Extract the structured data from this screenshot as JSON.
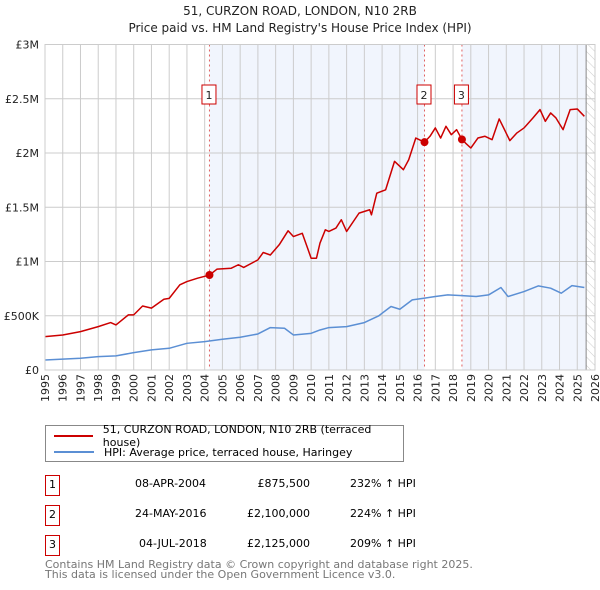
{
  "chart_data": {
    "type": "line",
    "title": "51, CURZON ROAD, LONDON, N10 2RB",
    "subtitle": "Price paid vs. HM Land Registry's House Price Index (HPI)",
    "xlim": [
      1995,
      2026
    ],
    "ylim": [
      0,
      3000000
    ],
    "x_ticks": [
      "1995",
      "1996",
      "1997",
      "1998",
      "1999",
      "2000",
      "2001",
      "2002",
      "2003",
      "2004",
      "2005",
      "2006",
      "2007",
      "2008",
      "2009",
      "2010",
      "2011",
      "2012",
      "2013",
      "2014",
      "2015",
      "2016",
      "2017",
      "2018",
      "2019",
      "2020",
      "2021",
      "2022",
      "2023",
      "2024",
      "2025",
      "2026"
    ],
    "y_ticks": [
      {
        "v": 0,
        "label": "£0"
      },
      {
        "v": 500000,
        "label": "£500K"
      },
      {
        "v": 1000000,
        "label": "£1M"
      },
      {
        "v": 1500000,
        "label": "£1.5M"
      },
      {
        "v": 2000000,
        "label": "£2M"
      },
      {
        "v": 2500000,
        "label": "£2.5M"
      },
      {
        "v": 3000000,
        "label": "£3M"
      }
    ],
    "grid": true,
    "series": [
      {
        "name": "51, CURZON ROAD, LONDON, N10 2RB (terraced house)",
        "color": "#cc0000",
        "points": [
          [
            1995,
            308
          ],
          [
            1996,
            323
          ],
          [
            1997,
            354
          ],
          [
            1998,
            400
          ],
          [
            1998.7,
            437
          ],
          [
            1999,
            415
          ],
          [
            1999.7,
            508
          ],
          [
            2000,
            508
          ],
          [
            2000.5,
            590
          ],
          [
            2001,
            570
          ],
          [
            2001.7,
            652
          ],
          [
            2002,
            660
          ],
          [
            2002.6,
            785
          ],
          [
            2003,
            815
          ],
          [
            2003.6,
            846
          ],
          [
            2004.27,
            875
          ],
          [
            2004.7,
            930
          ],
          [
            2005.5,
            938
          ],
          [
            2005.9,
            970
          ],
          [
            2006.2,
            945
          ],
          [
            2007,
            1015
          ],
          [
            2007.3,
            1083
          ],
          [
            2007.7,
            1060
          ],
          [
            2008.2,
            1154
          ],
          [
            2008.7,
            1283
          ],
          [
            2009,
            1230
          ],
          [
            2009.5,
            1260
          ],
          [
            2009.8,
            1123
          ],
          [
            2010,
            1030
          ],
          [
            2010.3,
            1030
          ],
          [
            2010.5,
            1170
          ],
          [
            2010.8,
            1292
          ],
          [
            2011,
            1277
          ],
          [
            2011.4,
            1308
          ],
          [
            2011.7,
            1385
          ],
          [
            2012,
            1277
          ],
          [
            2012.7,
            1446
          ],
          [
            2013.3,
            1477
          ],
          [
            2013.4,
            1430
          ],
          [
            2013.7,
            1630
          ],
          [
            2014.2,
            1661
          ],
          [
            2014.7,
            1923
          ],
          [
            2015.2,
            1846
          ],
          [
            2015.5,
            1938
          ],
          [
            2015.9,
            2138
          ],
          [
            2016.39,
            2100
          ],
          [
            2016.7,
            2154
          ],
          [
            2017,
            2231
          ],
          [
            2017.3,
            2138
          ],
          [
            2017.6,
            2246
          ],
          [
            2017.9,
            2169
          ],
          [
            2018.2,
            2215
          ],
          [
            2018.5,
            2125
          ],
          [
            2018.7,
            2092
          ],
          [
            2019,
            2046
          ],
          [
            2019.4,
            2138
          ],
          [
            2019.8,
            2154
          ],
          [
            2020.2,
            2123
          ],
          [
            2020.6,
            2314
          ],
          [
            2020.9,
            2215
          ],
          [
            2021.2,
            2114
          ],
          [
            2021.6,
            2185
          ],
          [
            2022,
            2231
          ],
          [
            2022.5,
            2323
          ],
          [
            2022.9,
            2400
          ],
          [
            2023.2,
            2292
          ],
          [
            2023.5,
            2369
          ],
          [
            2023.8,
            2323
          ],
          [
            2024.2,
            2215
          ],
          [
            2024.6,
            2400
          ],
          [
            2025,
            2406
          ],
          [
            2025.4,
            2338
          ]
        ]
      },
      {
        "name": "HPI: Average price, terraced house, Haringey",
        "color": "#5b8fd4",
        "points": [
          [
            1995,
            92
          ],
          [
            1997,
            108
          ],
          [
            1998,
            123
          ],
          [
            1999,
            130
          ],
          [
            2000,
            160
          ],
          [
            2001,
            185
          ],
          [
            2002,
            200
          ],
          [
            2003,
            246
          ],
          [
            2004,
            262
          ],
          [
            2005,
            283
          ],
          [
            2006,
            302
          ],
          [
            2007,
            332
          ],
          [
            2007.7,
            391
          ],
          [
            2008.5,
            385
          ],
          [
            2009,
            323
          ],
          [
            2010,
            338
          ],
          [
            2010.5,
            369
          ],
          [
            2011,
            391
          ],
          [
            2012,
            400
          ],
          [
            2013,
            437
          ],
          [
            2013.8,
            498
          ],
          [
            2014.5,
            585
          ],
          [
            2015,
            560
          ],
          [
            2015.7,
            646
          ],
          [
            2016.4,
            662
          ],
          [
            2017,
            677
          ],
          [
            2017.7,
            692
          ],
          [
            2018.5,
            686
          ],
          [
            2019.3,
            677
          ],
          [
            2020,
            692
          ],
          [
            2020.7,
            760
          ],
          [
            2021.1,
            677
          ],
          [
            2022,
            723
          ],
          [
            2022.8,
            775
          ],
          [
            2023.5,
            754
          ],
          [
            2024.1,
            708
          ],
          [
            2024.7,
            778
          ],
          [
            2025.4,
            760
          ]
        ]
      }
    ],
    "value_unit": "£ thousands",
    "sales": [
      {
        "label": "1",
        "x": 2004.27,
        "value": 875.5
      },
      {
        "label": "2",
        "x": 2016.39,
        "value": 2100
      },
      {
        "label": "3",
        "x": 2018.5,
        "value": 2125
      }
    ],
    "shaded_ranges": [
      [
        2004.27,
        2016.39
      ],
      [
        2018.5,
        2025.5
      ]
    ],
    "hatched_from": 2025.5
  },
  "legend": {
    "series1": "51, CURZON ROAD, LONDON, N10 2RB (terraced house)",
    "series2": "HPI: Average price, terraced house, Haringey",
    "placement": "below"
  },
  "sales_table": [
    {
      "num": "1",
      "date": "08-APR-2004",
      "price": "£875,500",
      "hpi": "232% ↑ HPI"
    },
    {
      "num": "2",
      "date": "24-MAY-2016",
      "price": "£2,100,000",
      "hpi": "224% ↑ HPI"
    },
    {
      "num": "3",
      "date": "04-JUL-2018",
      "price": "£2,125,000",
      "hpi": "209% ↑ HPI"
    }
  ],
  "footer": {
    "line1": "Contains HM Land Registry data © Crown copyright and database right 2025.",
    "line2": "This data is licensed under the Open Government Licence v3.0."
  }
}
